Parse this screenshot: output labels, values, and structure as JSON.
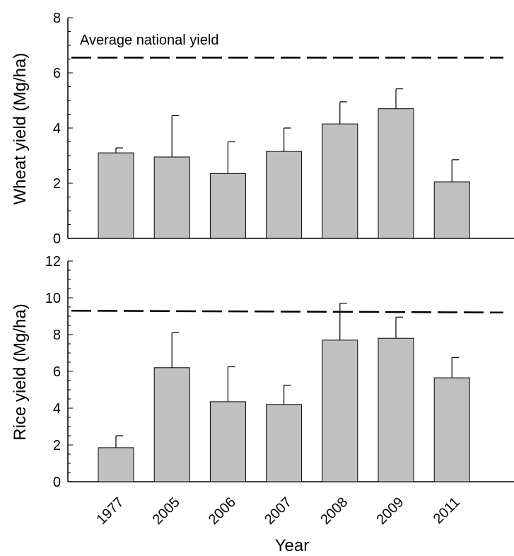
{
  "chart_data": [
    {
      "type": "bar",
      "categories": [
        "1977",
        "2005",
        "2006",
        "2007",
        "2008",
        "2009",
        "2011"
      ],
      "series": [
        {
          "values": [
            3.1,
            2.95,
            2.35,
            3.15,
            4.15,
            4.7,
            2.05
          ],
          "error_upper": [
            0.18,
            1.5,
            1.15,
            0.85,
            0.8,
            0.72,
            0.8
          ]
        }
      ],
      "reference_line": {
        "label": "Average national yield",
        "value": 6.55,
        "style": "dashed"
      },
      "xlabel": "",
      "ylabel": "Wheat yield (Mg/ha)",
      "ylim": [
        0,
        8
      ],
      "yticks": [
        "0",
        "2",
        "4",
        "6",
        "8"
      ],
      "grid": false
    },
    {
      "type": "bar",
      "categories": [
        "1977",
        "2005",
        "2006",
        "2007",
        "2008",
        "2009",
        "2011"
      ],
      "series": [
        {
          "values": [
            1.85,
            6.2,
            4.35,
            4.2,
            7.7,
            7.8,
            5.65
          ],
          "error_upper": [
            0.65,
            1.9,
            1.9,
            1.05,
            2.0,
            1.15,
            1.1
          ]
        }
      ],
      "reference_line": {
        "value_start": 9.3,
        "value_end": 9.2,
        "style": "dashed"
      },
      "xlabel": "Year",
      "ylabel": "Rice yield (Mg/ha)",
      "ylim": [
        0,
        12
      ],
      "yticks": [
        "0",
        "2",
        "4",
        "6",
        "8",
        "10",
        "12"
      ],
      "grid": false
    }
  ]
}
